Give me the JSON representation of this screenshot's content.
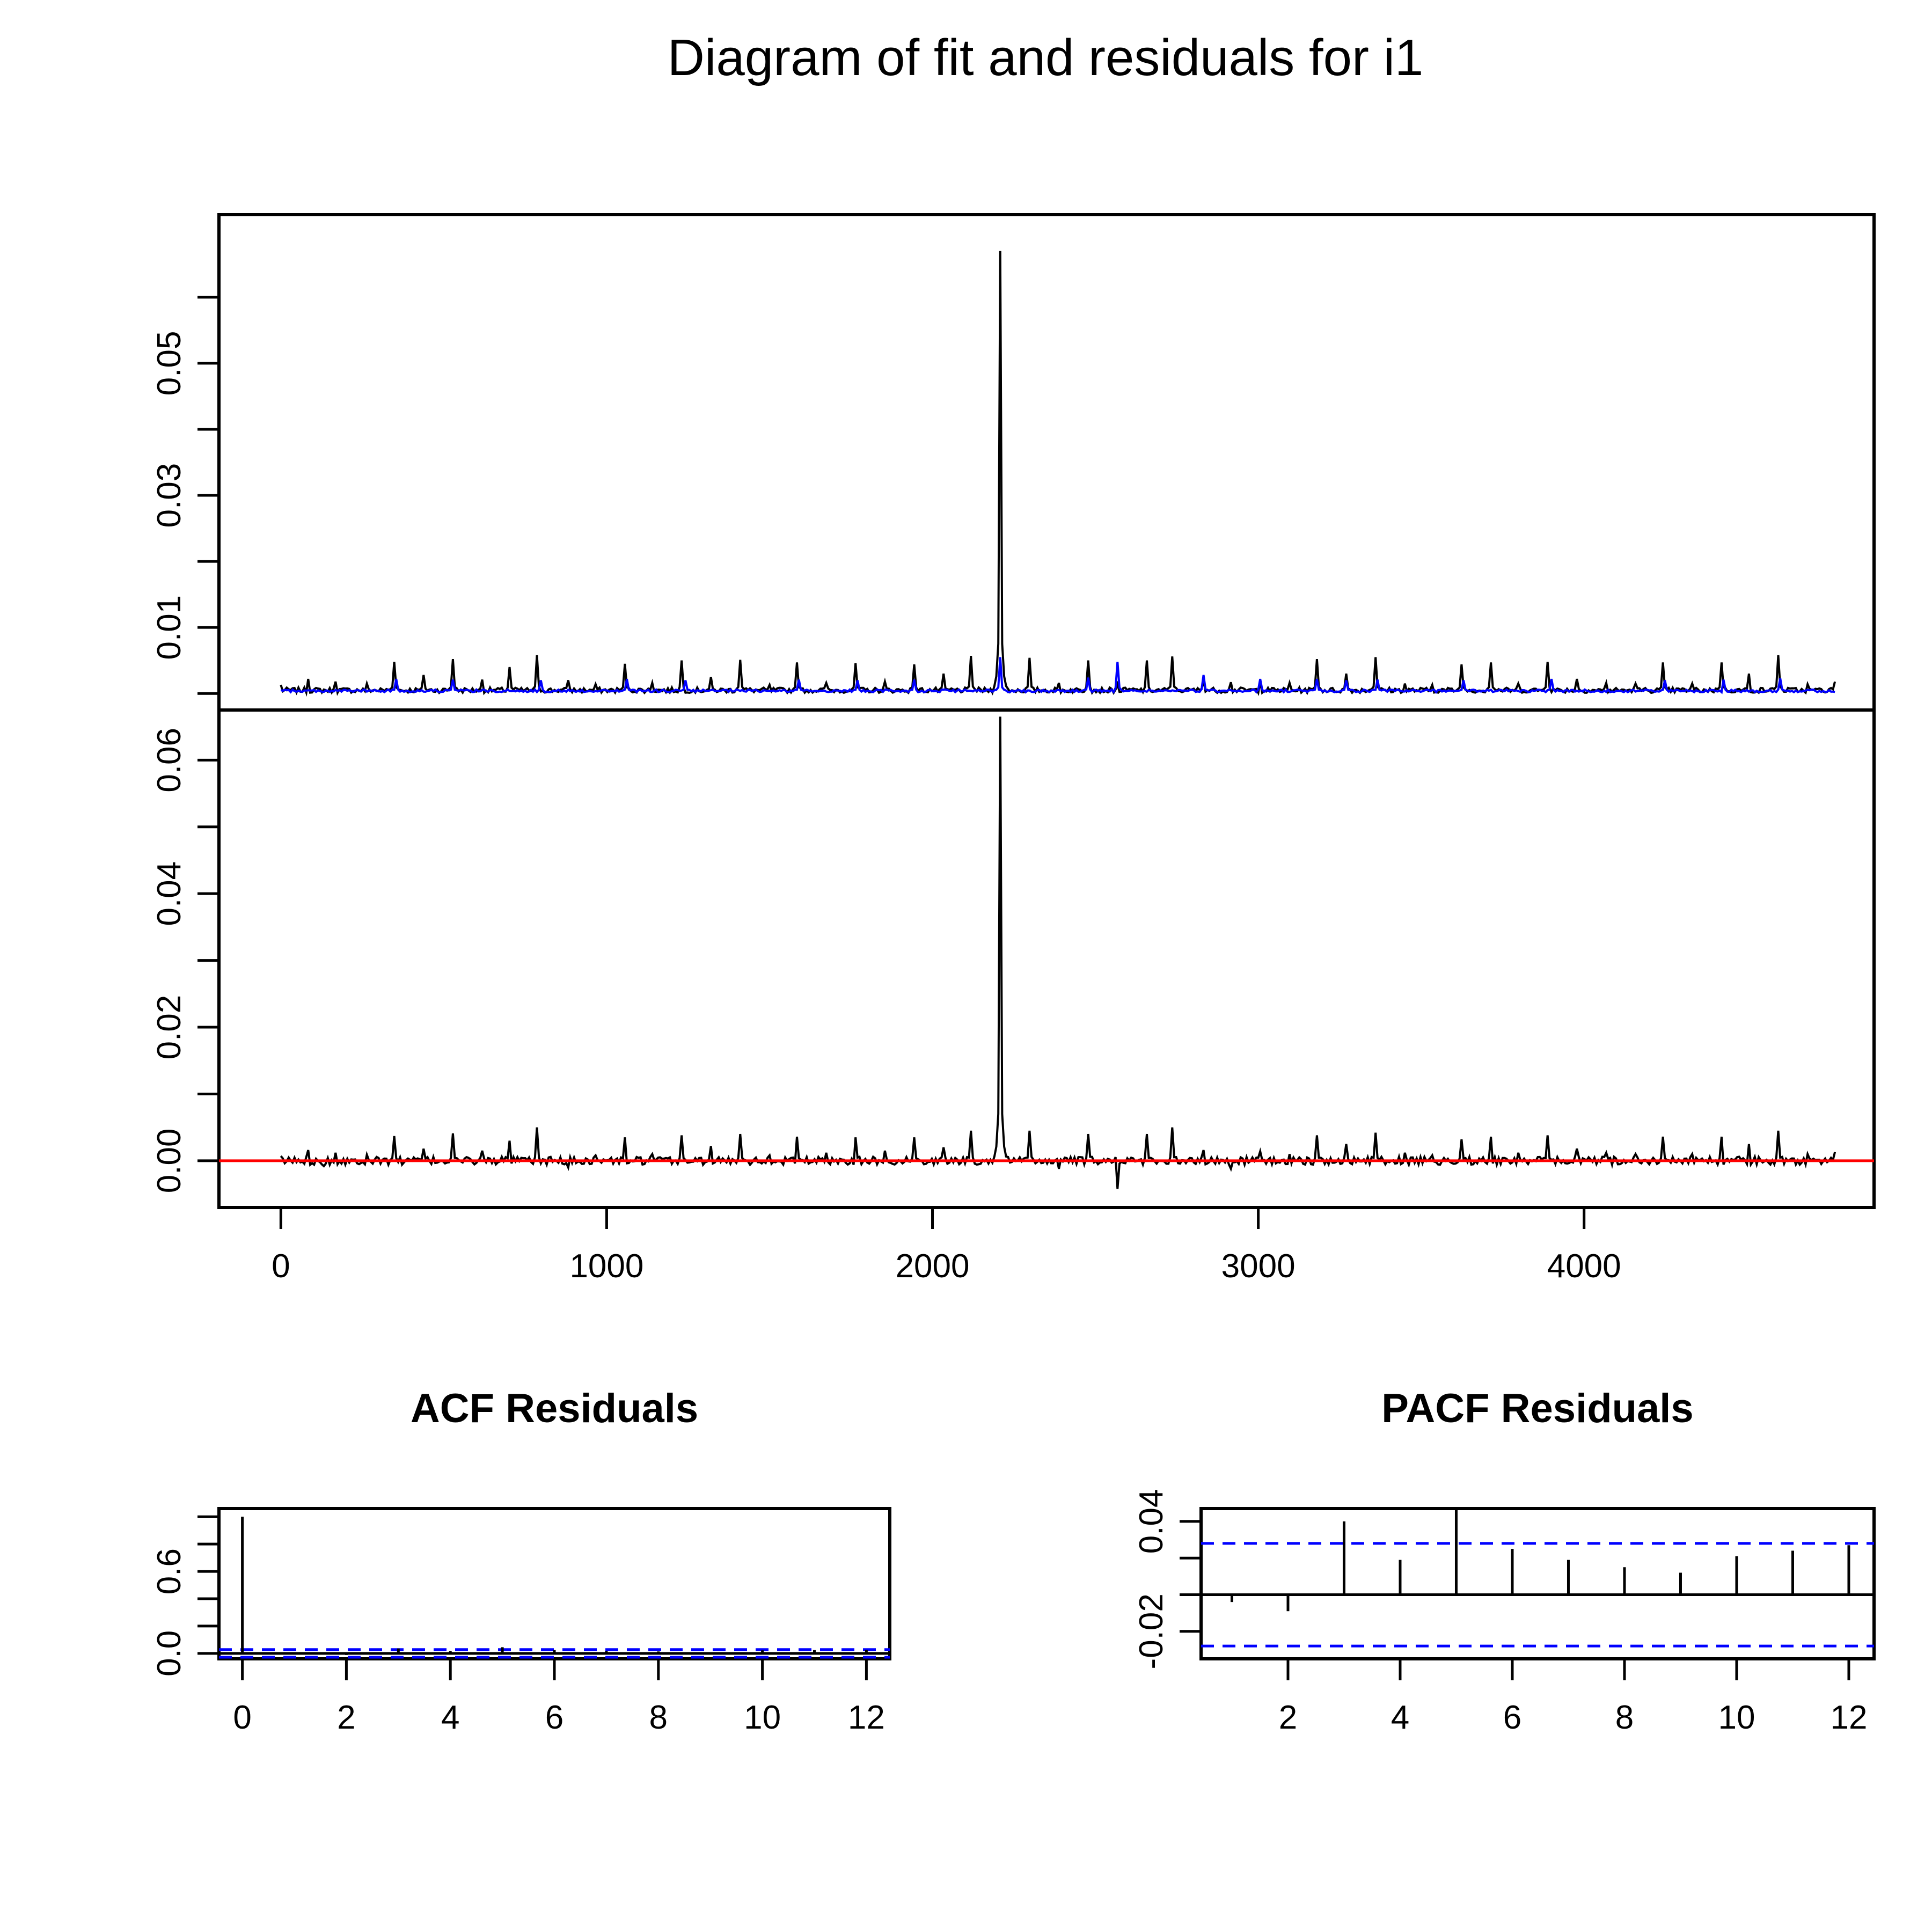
{
  "title": "Diagram of fit and residuals for i1",
  "colors": {
    "series": "#000000",
    "fitted": "#0000ff",
    "zero_line": "#ff0000",
    "confidence": "#0000ff"
  },
  "chart_data": [
    {
      "type": "line",
      "title": "",
      "xlabel": "",
      "ylabel": "",
      "xlim": [
        -190,
        4890
      ],
      "ylim": [
        -0.0025,
        0.0725
      ],
      "x_ticks": [
        "0",
        "1000",
        "2000",
        "3000",
        "4000"
      ],
      "y_tick_labels": [
        "0.01",
        "0.03",
        "0.05"
      ],
      "y_minor_ticks": [
        0.0,
        0.02,
        0.04,
        0.06
      ],
      "series": [
        {
          "role": "actual",
          "color": "#000000",
          "baseline": 0.0005,
          "x": [
            0,
            85,
            170,
            265,
            350,
            440,
            525,
            615,
            700,
            785,
            880,
            965,
            1055,
            1140,
            1230,
            1320,
            1410,
            1500,
            1585,
            1675,
            1765,
            1855,
            1945,
            2035,
            2120,
            2210,
            2300,
            2390,
            2475,
            2565,
            2655,
            2735,
            2830,
            2915,
            3005,
            3095,
            3180,
            3270,
            3360,
            3450,
            3535,
            3625,
            3715,
            3800,
            3890,
            3980,
            4070,
            4155,
            4240,
            4330,
            4420,
            4505,
            4595,
            4685,
            4770
          ],
          "y": [
            0.0013,
            0.0022,
            0.0018,
            0.0015,
            0.0048,
            0.0028,
            0.0052,
            0.0021,
            0.004,
            0.0058,
            0.002,
            0.0014,
            0.0045,
            0.0016,
            0.005,
            0.0025,
            0.0051,
            0.0013,
            0.0047,
            0.0016,
            0.0046,
            0.0018,
            0.0044,
            0.003,
            0.0057,
            0.067,
            0.0054,
            0.0016,
            0.005,
            0.0014,
            0.005,
            0.0056,
            0.002,
            0.0017,
            0.0018,
            0.0016,
            0.0052,
            0.003,
            0.0055,
            0.0015,
            0.0013,
            0.0044,
            0.0047,
            0.0015,
            0.0048,
            0.0022,
            0.0016,
            0.0015,
            0.0047,
            0.0015,
            0.0047,
            0.003,
            0.0058,
            0.0014,
            0.0018
          ]
        },
        {
          "role": "fitted",
          "color": "#0000ff",
          "baseline": 0.0004,
          "x": [
            355,
            530,
            795,
            1060,
            1240,
            1590,
            1770,
            1945,
            2210,
            2480,
            2565,
            2830,
            3005,
            3180,
            3270,
            3365,
            3630,
            3900,
            4245,
            4430,
            4600
          ],
          "y": [
            0.0022,
            0.0021,
            0.002,
            0.0022,
            0.002,
            0.0021,
            0.002,
            0.0021,
            0.0055,
            0.0024,
            0.0048,
            0.0028,
            0.0022,
            0.0022,
            0.002,
            0.0021,
            0.002,
            0.0022,
            0.002,
            0.0021,
            0.0023
          ]
        }
      ]
    },
    {
      "type": "line",
      "title": "",
      "xlabel": "",
      "ylabel": "",
      "xlim": [
        -190,
        4890
      ],
      "ylim": [
        -0.007,
        0.0675
      ],
      "x_ticks": [
        "0",
        "1000",
        "2000",
        "3000",
        "4000"
      ],
      "y_tick_labels": [
        "0.00",
        "0.02",
        "0.04",
        "0.06"
      ],
      "y_minor_ticks": [
        0.01,
        0.03,
        0.05
      ],
      "reference_line": 0,
      "series": [
        {
          "role": "residuals",
          "color": "#000000",
          "x": [
            0,
            85,
            130,
            170,
            265,
            350,
            440,
            525,
            615,
            700,
            785,
            880,
            965,
            1055,
            1140,
            1230,
            1320,
            1410,
            1500,
            1585,
            1675,
            1765,
            1855,
            1945,
            2035,
            2120,
            2210,
            2215,
            2300,
            2390,
            2475,
            2565,
            2655,
            2735,
            2830,
            2915,
            3005,
            3095,
            3180,
            3270,
            3360,
            3450,
            3535,
            3625,
            3715,
            3800,
            3890,
            3980,
            4070,
            4155,
            4240,
            4330,
            4420,
            4505,
            4595,
            4685,
            4770
          ],
          "y": [
            0.0007,
            0.0016,
            -0.0008,
            0.0012,
            0.0009,
            0.0037,
            0.0018,
            0.0041,
            0.0015,
            0.003,
            0.005,
            -0.001,
            0.0008,
            0.0035,
            0.001,
            0.0038,
            0.0022,
            0.004,
            0.0008,
            0.0036,
            0.0012,
            0.0035,
            0.0015,
            0.0035,
            0.002,
            0.0045,
            0.0665,
            -0.003,
            0.0045,
            -0.0012,
            0.004,
            -0.0042,
            0.004,
            0.005,
            0.0016,
            -0.0012,
            0.0014,
            0.001,
            0.0038,
            0.0025,
            0.0042,
            0.0012,
            0.0008,
            0.0032,
            0.0036,
            0.0012,
            0.0038,
            0.0018,
            0.0012,
            0.001,
            0.0036,
            0.001,
            0.0036,
            0.0025,
            0.0045,
            0.001,
            0.0013
          ]
        }
      ]
    },
    {
      "type": "bar",
      "title": "ACF Residuals",
      "xlabel": "",
      "ylabel": "",
      "xlim": [
        -0.45,
        12.45
      ],
      "ylim": [
        -0.04,
        1.06
      ],
      "x_ticks": [
        "0",
        "2",
        "4",
        "6",
        "8",
        "10",
        "12"
      ],
      "y_tick_labels": [
        "0.0",
        "0.6"
      ],
      "y_minor_ticks": [
        0.2,
        0.4,
        0.8,
        1.0
      ],
      "confidence_band": 0.028,
      "lags": [
        0,
        1,
        2,
        3,
        4,
        5,
        6,
        7,
        8,
        9,
        10,
        11,
        12
      ],
      "values": [
        1.0,
        -0.006,
        -0.012,
        0.036,
        0.018,
        0.045,
        0.024,
        0.018,
        0.014,
        0.008,
        0.022,
        0.024,
        0.026
      ]
    },
    {
      "type": "bar",
      "title": "PACF Residuals",
      "xlabel": "",
      "ylabel": "",
      "xlim": [
        0.45,
        12.45
      ],
      "ylim": [
        -0.035,
        0.047
      ],
      "x_ticks": [
        "2",
        "4",
        "6",
        "8",
        "10",
        "12"
      ],
      "y_tick_labels": [
        "-0.02",
        "0.04"
      ],
      "y_minor_ticks": [
        0.0,
        0.02
      ],
      "confidence_band": 0.028,
      "lags": [
        1,
        2,
        3,
        4,
        5,
        6,
        7,
        8,
        9,
        10,
        11,
        12
      ],
      "values": [
        -0.004,
        -0.009,
        0.04,
        0.019,
        0.047,
        0.025,
        0.019,
        0.015,
        0.012,
        0.021,
        0.024,
        0.027
      ]
    }
  ]
}
